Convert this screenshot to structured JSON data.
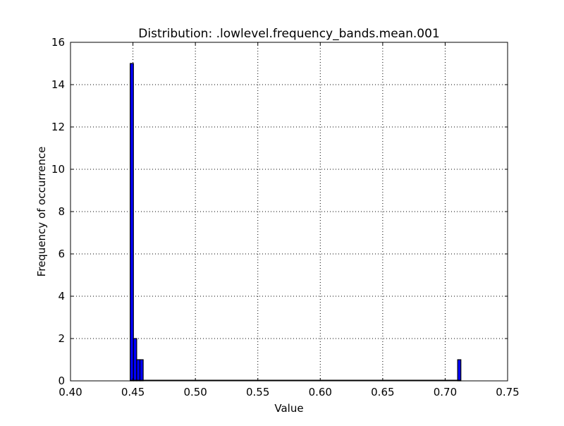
{
  "chart_data": {
    "type": "bar",
    "title": "Distribution: .lowlevel.frequency_bands.mean.001",
    "xlabel": "Value",
    "ylabel": "Frequency of occurrence",
    "xlim": [
      0.4,
      0.75
    ],
    "ylim": [
      0,
      16
    ],
    "xticks": [
      "0.40",
      "0.45",
      "0.50",
      "0.55",
      "0.60",
      "0.65",
      "0.70",
      "0.75"
    ],
    "yticks": [
      "0",
      "2",
      "4",
      "6",
      "8",
      "10",
      "12",
      "14",
      "16"
    ],
    "grid": true,
    "bin_width": 0.0026,
    "bins": [
      {
        "x": 0.4478,
        "value": 15
      },
      {
        "x": 0.4504,
        "value": 2
      },
      {
        "x": 0.453,
        "value": 1
      },
      {
        "x": 0.4556,
        "value": 1
      },
      {
        "x": 0.71,
        "value": 1
      }
    ],
    "colors": {
      "bar_fill": "#0000ff",
      "bar_edge": "#000000",
      "grid": "#000000"
    }
  }
}
